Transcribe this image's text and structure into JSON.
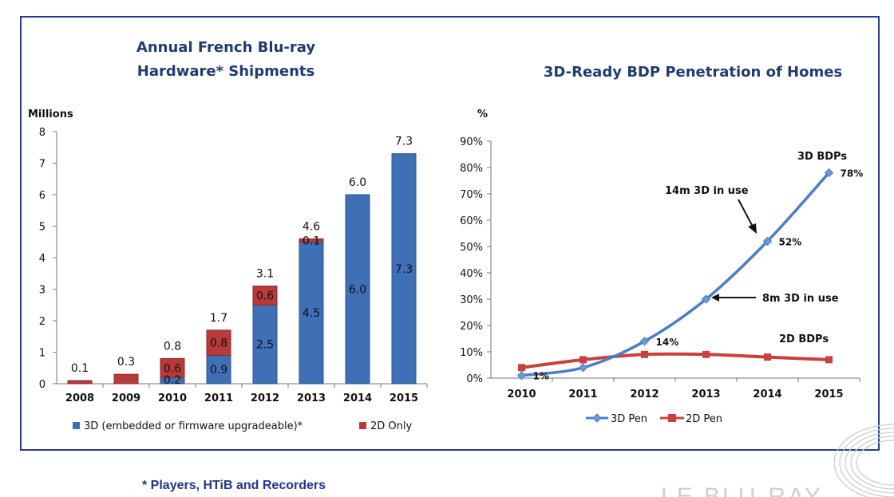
{
  "footnote": "* Players, HTiB and Recorders",
  "logo_text": "LE BLU-RAY",
  "colors": {
    "frame": "#2a3a8c",
    "bar_3d": "#3f6fb5",
    "bar_2d": "#b83a3a",
    "line_3d": "#4a7ec8",
    "line_2d": "#c8413c"
  },
  "chart_data": [
    {
      "type": "bar",
      "stacked": true,
      "title_lines": [
        "Annual French Blu-ray",
        "Hardware* Shipments"
      ],
      "ylabel": "Millions",
      "ylim": [
        0,
        8
      ],
      "yticks": [
        "0",
        "1",
        "2",
        "3",
        "4",
        "5",
        "6",
        "7",
        "8"
      ],
      "categories": [
        "2008",
        "2009",
        "2010",
        "2011",
        "2012",
        "2013",
        "2014",
        "2015"
      ],
      "series": [
        {
          "name": "3D (embedded or firmware upgradeable)*",
          "values": [
            0,
            0,
            0.2,
            0.9,
            2.5,
            4.5,
            6.0,
            7.3
          ],
          "labels": [
            "",
            "",
            "0.2",
            "0.9",
            "2.5",
            "4.5",
            "6.0",
            "7.3"
          ]
        },
        {
          "name": "2D Only",
          "values": [
            0.1,
            0.3,
            0.6,
            0.8,
            0.6,
            0.1,
            0,
            0
          ],
          "labels": [
            "",
            "",
            "0.6",
            "0.8",
            "0.6",
            "0.1",
            "",
            ""
          ]
        }
      ],
      "totals": [
        "0.1",
        "0.3",
        "0.8",
        "1.7",
        "3.1",
        "4.6",
        "6.0",
        "7.3"
      ],
      "legend_position": "bottom"
    },
    {
      "type": "line",
      "title": "3D-Ready BDP Penetration of Homes",
      "ylabel": "%",
      "ylim": [
        0,
        90
      ],
      "yticks": [
        "0%",
        "10%",
        "20%",
        "30%",
        "40%",
        "50%",
        "60%",
        "70%",
        "80%",
        "90%"
      ],
      "categories": [
        "2010",
        "2011",
        "2012",
        "2013",
        "2014",
        "2015"
      ],
      "series": [
        {
          "name": "3D Pen",
          "values": [
            1,
            4,
            14,
            30,
            52,
            78
          ],
          "labels": [
            "1%",
            "",
            "14%",
            "",
            "52%",
            "78%"
          ]
        },
        {
          "name": "2D Pen",
          "values": [
            4,
            7,
            9,
            9,
            8,
            7
          ]
        }
      ],
      "annotations": [
        "3D BDPs",
        "14m 3D in use",
        "8m 3D in use",
        "2D BDPs"
      ],
      "legend_position": "bottom"
    }
  ]
}
